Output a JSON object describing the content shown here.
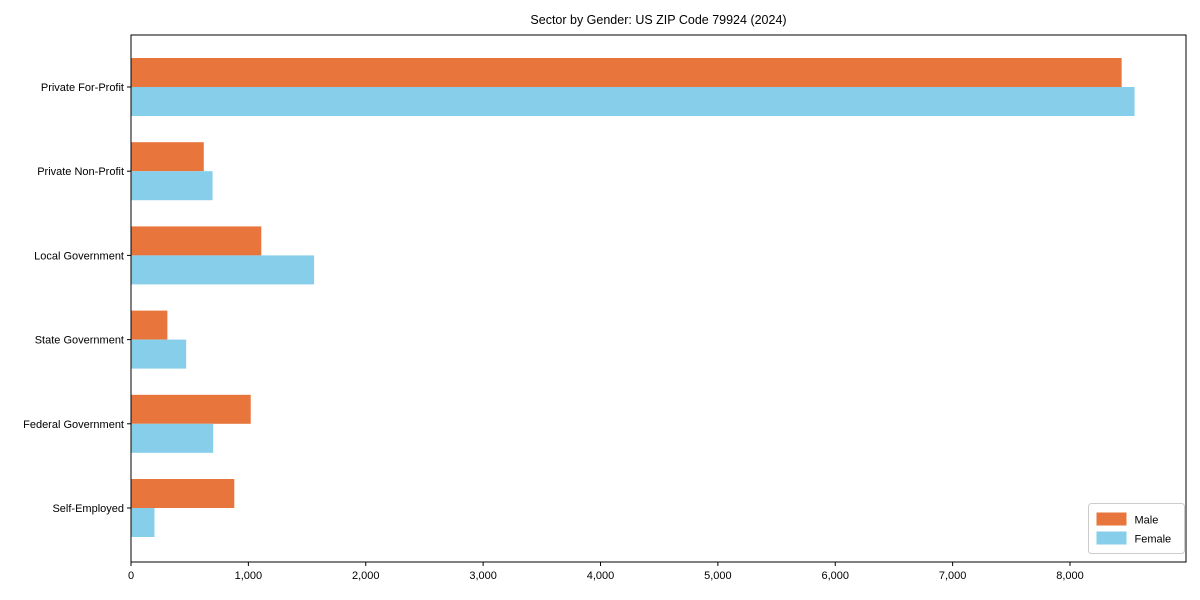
{
  "chart_data": {
    "type": "bar",
    "orientation": "horizontal",
    "title": "Sector by Gender: US ZIP Code 79924 (2024)",
    "categories": [
      "Private For-Profit",
      "Private Non-Profit",
      "Local Government",
      "State Government",
      "Federal Government",
      "Self-Employed"
    ],
    "series": [
      {
        "name": "Male",
        "color": "#e8763c",
        "values": [
          8440,
          620,
          1110,
          310,
          1020,
          880
        ]
      },
      {
        "name": "Female",
        "color": "#87ceeb",
        "values": [
          8550,
          695,
          1560,
          470,
          700,
          200
        ]
      }
    ],
    "xlabel": "",
    "ylabel": "",
    "xlim": [
      0,
      8990
    ],
    "xticks": [
      0,
      1000,
      2000,
      3000,
      4000,
      5000,
      6000,
      7000,
      8000
    ],
    "xtick_labels": [
      "0",
      "1,000",
      "2,000",
      "3,000",
      "4,000",
      "5,000",
      "6,000",
      "7,000",
      "8,000"
    ],
    "grid": false,
    "legend": {
      "position": "lower right",
      "entries": [
        "Male",
        "Female"
      ]
    },
    "colors": {
      "frame": "#000000",
      "tick_text": "#000000",
      "legend_border": "#cccccc",
      "background": "#ffffff"
    }
  }
}
